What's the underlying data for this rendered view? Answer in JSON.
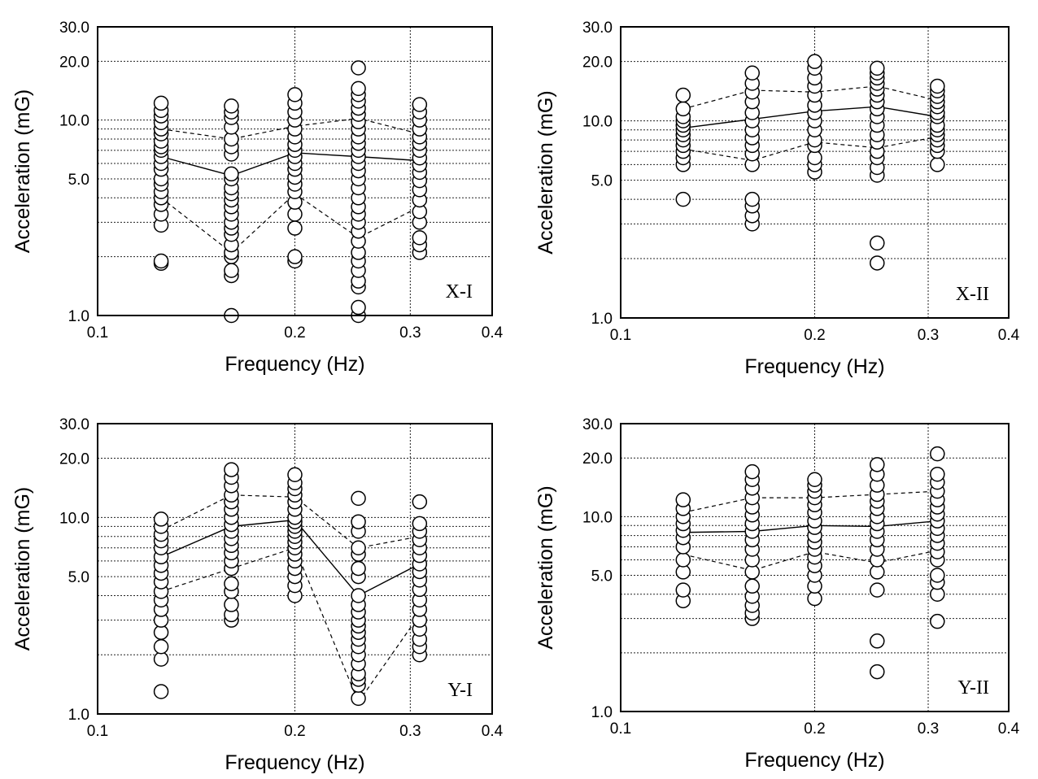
{
  "chart_data": [
    {
      "type": "scatter",
      "panel_label": "X-I",
      "xlabel": "Frequency (Hz)",
      "ylabel": "Acceleration (mG)",
      "x_scale": "log",
      "y_scale": "log",
      "xlim": [
        0.1,
        0.4
      ],
      "ylim": [
        1.0,
        30.0
      ],
      "x_ticks": [
        "0.1",
        "0.2",
        "0.3",
        "0.4"
      ],
      "y_ticks": [
        "1.0",
        "5.0",
        "10.0",
        "20.0",
        "30.0"
      ],
      "x": [
        0.125,
        0.16,
        0.2,
        0.25,
        0.31
      ],
      "samples": [
        [
          1.85,
          1.9,
          2.9,
          3.3,
          3.7,
          4.0,
          4.3,
          4.7,
          5.0,
          5.6,
          6.0,
          6.5,
          7.0,
          7.3,
          7.8,
          8.5,
          9.0,
          9.7,
          10.5,
          11.2,
          12.2
        ],
        [
          1.0,
          1.6,
          1.7,
          2.0,
          2.1,
          2.3,
          2.6,
          2.8,
          3.0,
          3.3,
          3.6,
          3.9,
          4.2,
          4.5,
          5.0,
          5.3,
          6.7,
          7.3,
          8.0,
          9.2,
          10.3,
          11.0,
          11.8
        ],
        [
          1.9,
          2.0,
          2.8,
          3.3,
          3.8,
          4.3,
          4.7,
          5.1,
          5.6,
          6.0,
          6.5,
          7.0,
          7.5,
          8.2,
          9.0,
          10.0,
          11.0,
          12.2,
          13.5
        ],
        [
          1.0,
          1.1,
          1.4,
          1.5,
          1.7,
          1.9,
          2.1,
          2.4,
          2.7,
          3.0,
          3.3,
          3.6,
          4.0,
          4.5,
          5.0,
          5.5,
          6.0,
          6.5,
          7.0,
          7.6,
          8.2,
          9.0,
          9.8,
          10.7,
          11.5,
          12.5,
          13.5,
          14.5,
          18.5
        ],
        [
          2.1,
          2.3,
          2.5,
          3.0,
          3.4,
          3.9,
          4.4,
          4.9,
          5.4,
          5.9,
          6.4,
          7.0,
          7.6,
          8.2,
          9.0,
          10.0,
          11.0,
          12.0
        ]
      ],
      "mean": [
        6.5,
        5.2,
        6.8,
        6.5,
        6.2
      ],
      "upper": [
        9.0,
        8.0,
        9.3,
        10.2,
        8.5
      ],
      "lower": [
        4.0,
        2.1,
        4.2,
        2.5,
        3.6
      ]
    },
    {
      "type": "scatter",
      "panel_label": "X-II",
      "xlabel": "Frequency (Hz)",
      "ylabel": "Acceleration (mG)",
      "x_scale": "log",
      "y_scale": "log",
      "xlim": [
        0.1,
        0.4
      ],
      "ylim": [
        1.0,
        30.0
      ],
      "x_ticks": [
        "0.1",
        "0.2",
        "0.3",
        "0.4"
      ],
      "y_ticks": [
        "1.0",
        "5.0",
        "10.0",
        "20.0",
        "30.0"
      ],
      "x": [
        0.125,
        0.16,
        0.2,
        0.25,
        0.31
      ],
      "samples": [
        [
          4.0,
          6.0,
          6.5,
          7.0,
          7.5,
          8.0,
          8.5,
          9.0,
          9.5,
          10.0,
          10.5,
          11.5,
          13.5
        ],
        [
          3.0,
          3.3,
          3.7,
          4.0,
          6.0,
          6.8,
          7.5,
          8.2,
          9.0,
          10.0,
          11.0,
          12.5,
          14.0,
          15.5,
          17.5
        ],
        [
          5.5,
          6.0,
          6.5,
          7.5,
          8.0,
          9.0,
          10.0,
          11.0,
          12.0,
          13.5,
          15.0,
          16.5,
          18.5,
          20.0
        ],
        [
          1.9,
          2.4,
          5.3,
          5.8,
          6.5,
          7.0,
          7.8,
          8.5,
          9.5,
          10.5,
          11.5,
          12.5,
          13.5,
          14.5,
          15.5,
          16.5,
          17.5,
          18.5
        ],
        [
          6.0,
          7.0,
          7.5,
          8.0,
          8.5,
          9.0,
          9.5,
          10.5,
          11.0,
          11.8,
          12.5,
          13.3,
          14.2,
          15.0
        ]
      ],
      "mean": [
        9.2,
        10.2,
        11.2,
        11.8,
        10.5
      ],
      "upper": [
        11.5,
        14.3,
        14.0,
        15.0,
        12.7
      ],
      "lower": [
        7.2,
        6.3,
        7.8,
        7.3,
        8.3
      ]
    },
    {
      "type": "scatter",
      "panel_label": "Y-I",
      "xlabel": "Frequency (Hz)",
      "ylabel": "Acceleration (mG)",
      "x_scale": "log",
      "y_scale": "log",
      "xlim": [
        0.1,
        0.4
      ],
      "ylim": [
        1.0,
        30.0
      ],
      "x_ticks": [
        "0.1",
        "0.2",
        "0.3",
        "0.4"
      ],
      "y_ticks": [
        "1.0",
        "5.0",
        "10.0",
        "20.0",
        "30.0"
      ],
      "x": [
        0.125,
        0.16,
        0.2,
        0.25,
        0.31
      ],
      "samples": [
        [
          1.3,
          1.9,
          2.2,
          2.6,
          3.0,
          3.4,
          3.8,
          4.2,
          4.7,
          5.2,
          5.7,
          6.3,
          7.0,
          7.6,
          8.2,
          9.0,
          9.8
        ],
        [
          3.0,
          3.2,
          3.6,
          4.2,
          4.6,
          5.5,
          6.0,
          6.6,
          7.2,
          7.8,
          8.5,
          9.2,
          10.0,
          11.0,
          12.0,
          13.0,
          14.5,
          16.0,
          17.5
        ],
        [
          4.0,
          4.5,
          5.0,
          5.5,
          6.0,
          6.5,
          7.0,
          7.5,
          8.0,
          8.5,
          9.0,
          9.5,
          10.0,
          11.0,
          12.0,
          13.0,
          14.0,
          15.0,
          16.5
        ],
        [
          1.2,
          1.4,
          1.5,
          1.6,
          1.8,
          2.0,
          2.2,
          2.4,
          2.6,
          2.8,
          3.0,
          3.3,
          3.6,
          4.0,
          5.0,
          5.5,
          6.5,
          7.0,
          8.5,
          9.5,
          12.5
        ],
        [
          2.0,
          2.2,
          2.4,
          2.7,
          3.0,
          3.4,
          3.8,
          4.3,
          4.8,
          5.3,
          5.8,
          6.4,
          7.0,
          7.7,
          8.5,
          9.3,
          12.0
        ]
      ],
      "mean": [
        6.3,
        9.0,
        9.7,
        4.0,
        5.8
      ],
      "upper": [
        8.6,
        13.0,
        12.7,
        7.0,
        8.0
      ],
      "lower": [
        4.2,
        5.5,
        7.0,
        1.15,
        3.2
      ]
    },
    {
      "type": "scatter",
      "panel_label": "Y-II",
      "xlabel": "Frequency (Hz)",
      "ylabel": "Acceleration (mG)",
      "x_scale": "log",
      "y_scale": "log",
      "xlim": [
        0.1,
        0.4
      ],
      "ylim": [
        1.0,
        30.0
      ],
      "x_ticks": [
        "0.1",
        "0.2",
        "0.3",
        "0.4"
      ],
      "y_ticks": [
        "1.0",
        "5.0",
        "10.0",
        "20.0",
        "30.0"
      ],
      "x": [
        0.125,
        0.16,
        0.2,
        0.25,
        0.31
      ],
      "samples": [
        [
          3.7,
          4.2,
          5.2,
          6.0,
          7.0,
          7.8,
          8.5,
          9.2,
          10.0,
          11.0,
          12.2
        ],
        [
          3.0,
          3.2,
          3.5,
          3.9,
          4.4,
          5.2,
          6.0,
          6.8,
          7.6,
          8.4,
          9.2,
          10.2,
          11.2,
          12.5,
          14.0,
          15.5,
          17.0
        ],
        [
          3.8,
          4.4,
          5.0,
          5.6,
          6.2,
          6.8,
          7.4,
          8.0,
          8.8,
          9.5,
          10.5,
          11.5,
          12.5,
          13.5,
          14.5,
          15.5
        ],
        [
          1.6,
          2.3,
          4.2,
          5.2,
          6.0,
          6.8,
          7.6,
          8.4,
          9.2,
          10.0,
          11.0,
          12.0,
          13.0,
          14.5,
          16.5,
          18.5
        ],
        [
          2.9,
          4.0,
          4.6,
          5.0,
          6.0,
          6.6,
          7.3,
          8.0,
          8.7,
          9.5,
          10.3,
          11.2,
          12.2,
          13.5,
          15.0,
          16.5,
          21.0
        ]
      ],
      "mean": [
        8.3,
        8.4,
        9.0,
        8.9,
        9.5
      ],
      "upper": [
        10.5,
        12.5,
        12.5,
        13.0,
        13.5
      ],
      "lower": [
        6.4,
        5.3,
        6.6,
        5.8,
        6.7
      ]
    }
  ]
}
